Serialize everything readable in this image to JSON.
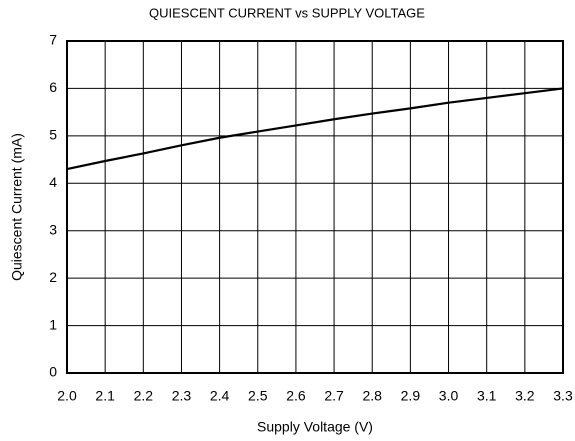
{
  "chart_data": {
    "type": "line",
    "title": "QUIESCENT CURRENT vs SUPPLY VOLTAGE",
    "x_label": "Supply Voltage (V)",
    "y_label": "Quiescent Current (mA)",
    "x": [
      2.0,
      2.1,
      2.2,
      2.3,
      2.4,
      2.5,
      2.6,
      2.7,
      2.8,
      2.9,
      3.0,
      3.1,
      3.2,
      3.3
    ],
    "series": [
      {
        "name": "Quiescent Current",
        "color": "#000000",
        "values": [
          4.3,
          4.47,
          4.63,
          4.8,
          4.96,
          5.09,
          5.22,
          5.35,
          5.47,
          5.58,
          5.7,
          5.8,
          5.9,
          6.0
        ]
      }
    ],
    "xlim": [
      2.0,
      3.3
    ],
    "xticks": [
      {
        "value": 2.0,
        "label": "2.0"
      },
      2.1,
      2.2,
      2.3,
      2.4,
      2.5,
      2.6,
      2.7,
      2.8,
      2.9,
      {
        "value": 3.0,
        "label": "3.0"
      },
      3.1,
      3.2,
      3.3
    ],
    "ylim": [
      0,
      7
    ],
    "yticks": [
      0,
      1,
      2,
      3,
      4,
      5,
      6,
      7
    ],
    "grid": true
  }
}
